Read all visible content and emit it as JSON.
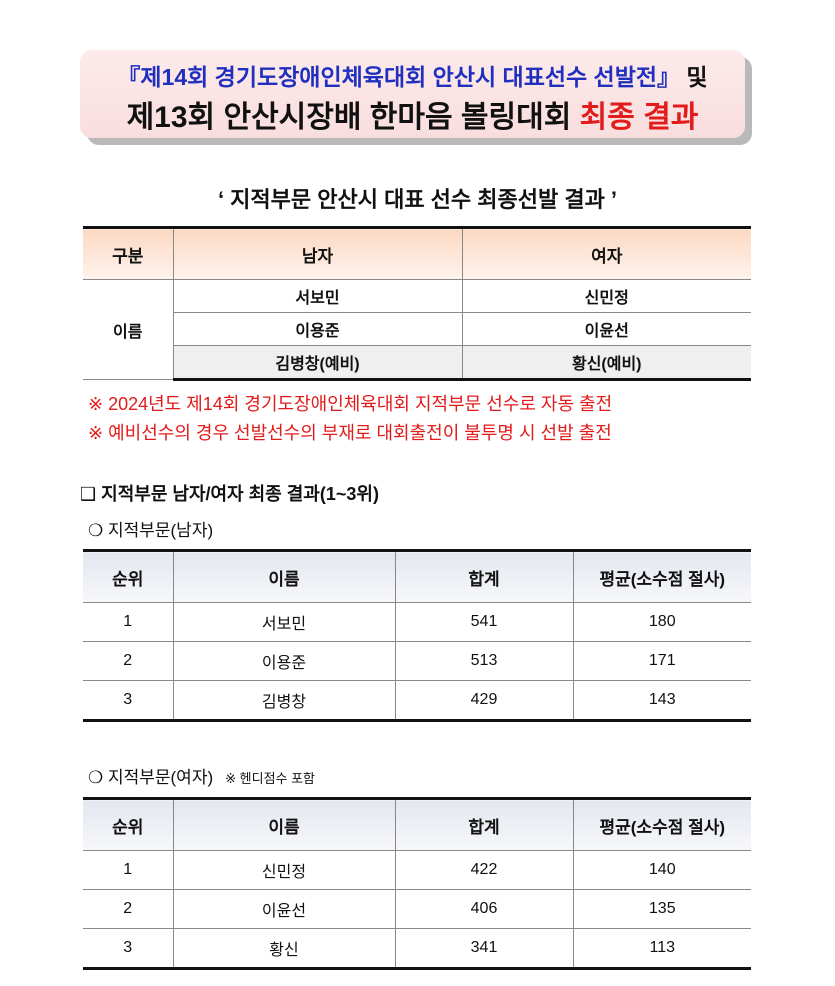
{
  "title": {
    "line1_blue": "『제14회 경기도장애인체육대회 안산시 대표선수 선발전』",
    "line1_black": " 및",
    "line2_black": "제13회 안산시장배 한마음 볼링대회 ",
    "line2_red": "최종 결과"
  },
  "subtitle": "‘ 지적부문 안산시 대표 선수 최종선발 결과 ’",
  "selection": {
    "headers": [
      "구분",
      "남자",
      "여자"
    ],
    "row_label": "이름",
    "rows": [
      [
        "서보민",
        "신민정"
      ],
      [
        "이용준",
        "이윤선"
      ],
      [
        "김병창(예비)",
        "황신(예비)"
      ]
    ]
  },
  "notes": [
    "※ 2024년도 제14회 경기도장애인체육대회 지적부문 선수로 자동 출전",
    "※ 예비선수의 경우 선발선수의 부재로 대회출전이 불투명 시 선발 출전"
  ],
  "section_heading": "❑ 지적부문 남자/여자 최종 결과(1~3위)",
  "men": {
    "label": "❍ 지적부문(남자)",
    "headers": [
      "순위",
      "이름",
      "합계",
      "평균(소수점 절사)"
    ],
    "rows": [
      [
        "1",
        "서보민",
        "541",
        "180"
      ],
      [
        "2",
        "이용준",
        "513",
        "171"
      ],
      [
        "3",
        "김병창",
        "429",
        "143"
      ]
    ]
  },
  "women": {
    "label": "❍ 지적부문(여자)",
    "note": "※ 헨디점수 포함",
    "headers": [
      "순위",
      "이름",
      "합계",
      "평균(소수점 절사)"
    ],
    "rows": [
      [
        "1",
        "신민정",
        "422",
        "140"
      ],
      [
        "2",
        "이윤선",
        "406",
        "135"
      ],
      [
        "3",
        "황신",
        "341",
        "113"
      ]
    ]
  }
}
